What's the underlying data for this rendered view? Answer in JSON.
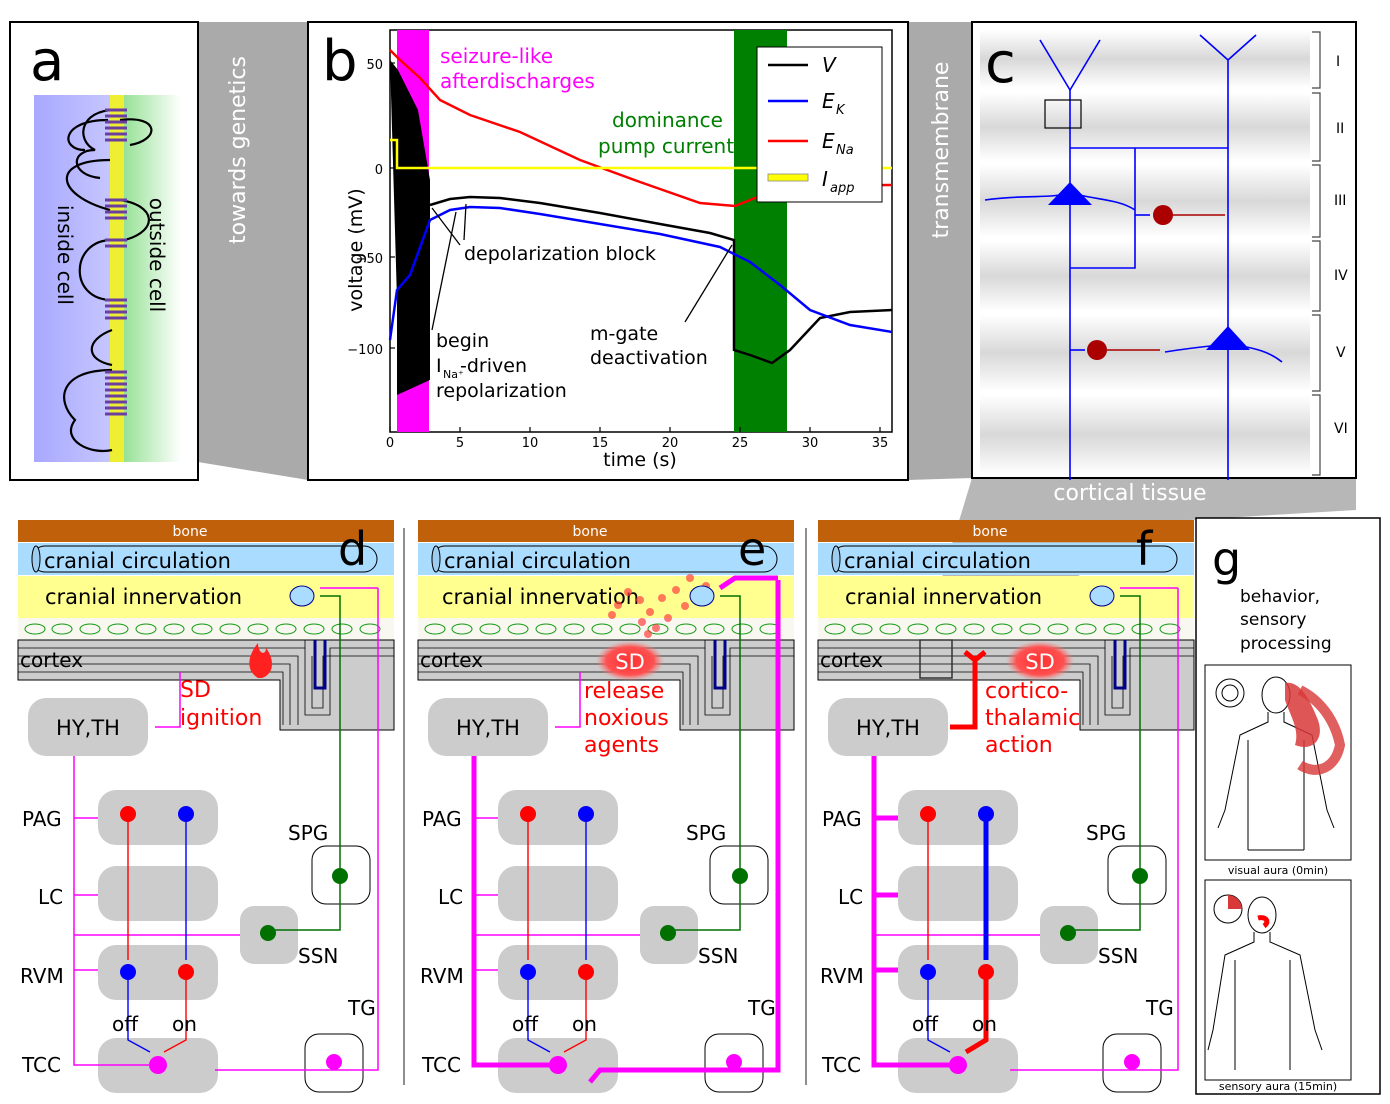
{
  "panels": {
    "a": {
      "letter": "a",
      "label_inside": "inside cell",
      "label_outside": "outside cell",
      "caption": "towards genetics"
    },
    "b": {
      "letter": "b",
      "ylabel": "voltage  (mV)",
      "xlabel": "time (s)",
      "xticks": [
        "0",
        "5",
        "10",
        "15",
        "20",
        "25",
        "30",
        "35"
      ],
      "yticks": [
        "50",
        "0",
        "−50",
        "−100"
      ],
      "ann_seizure_1": "seizure-like",
      "ann_seizure_2": "afterdischarges",
      "ann_dominance_1": "dominance",
      "ann_dominance_2": "pump current",
      "ann_depol": "depolarization block",
      "ann_begin_1": "begin",
      "ann_begin_2a": "I",
      "ann_begin_2sub": "Na⁺",
      "ann_begin_2b": " -driven",
      "ann_begin_3": "repolarization",
      "ann_mgate_1": "m-gate",
      "ann_mgate_2": "deactivation",
      "legend": [
        "V",
        "E",
        "E",
        "I"
      ],
      "legend_sub": [
        "",
        "K",
        "Na",
        "app"
      ],
      "caption": "transmembrane"
    },
    "c": {
      "letter": "c",
      "layers": [
        "I",
        "II",
        "III",
        "IV",
        "V",
        "VI"
      ],
      "caption": "cortical tissue"
    },
    "d": {
      "letter": "d",
      "bone": "bone",
      "circulation": "cranial circulation",
      "innervation": "cranial innervation",
      "cortex": "cortex",
      "hy_th": "HY,TH",
      "note_1": "SD",
      "note_2": "ignition",
      "pag": "PAG",
      "lc": "LC",
      "rvm": "RVM",
      "tcc": "TCC",
      "spg": "SPG",
      "ssn": "SSN",
      "tg": "TG",
      "off": "off",
      "on": "on"
    },
    "e": {
      "letter": "e",
      "bone": "bone",
      "circulation": "cranial circulation",
      "innervation": "cranial innervation",
      "cortex": "cortex",
      "sd": "SD",
      "hy_th": "HY,TH",
      "note_1": "release",
      "note_2": "noxious",
      "note_3": "agents",
      "pag": "PAG",
      "lc": "LC",
      "rvm": "RVM",
      "tcc": "TCC",
      "spg": "SPG",
      "ssn": "SSN",
      "tg": "TG",
      "off": "off",
      "on": "on"
    },
    "f": {
      "letter": "f",
      "bone": "bone",
      "circulation": "cranial circulation",
      "innervation": "cranial innervation",
      "cortex": "cortex",
      "sd": "SD",
      "hy_th": "HY,TH",
      "note_1": "cortico-",
      "note_2": "thalamic",
      "note_3": "action",
      "pag": "PAG",
      "lc": "LC",
      "rvm": "RVM",
      "tcc": "TCC",
      "spg": "SPG",
      "ssn": "SSN",
      "tg": "TG",
      "off": "off",
      "on": "on"
    },
    "g": {
      "letter": "g",
      "title_1": "behavior,",
      "title_2": "sensory",
      "title_3": "processing",
      "caption_1": "visual aura (0min)",
      "caption_2": "sensory aura (15min)"
    }
  },
  "colors": {
    "magenta": "#ff00ff",
    "green": "#007000",
    "red": "#ff0000",
    "blue": "#0000ff",
    "yellow": "#ffff00",
    "bone": "#c0600a",
    "circulation": "#aadcff",
    "innervation": "#ffff90",
    "grey": "#cccccc"
  }
}
